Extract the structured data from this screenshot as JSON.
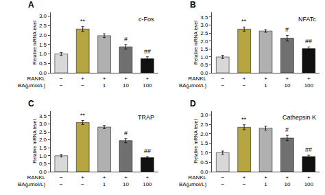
{
  "chart_data": [
    {
      "type": "bar",
      "title": "c-Fos",
      "panel_label": "A",
      "y_label": "Relative mRNA level",
      "category_rows": [
        {
          "label": "RANKL",
          "values": [
            "−",
            "+",
            "+",
            "+",
            "+"
          ]
        },
        {
          "label": "BA(μmol/L)",
          "values": [
            "−",
            "−",
            "1",
            "10",
            "100"
          ]
        }
      ],
      "values": [
        1.0,
        2.32,
        1.97,
        1.38,
        0.75
      ],
      "errors": [
        0.08,
        0.13,
        0.1,
        0.12,
        0.1
      ],
      "annotations": [
        null,
        "**",
        null,
        "#",
        "##"
      ],
      "colors": [
        "#d8d8d8",
        "#b5a642",
        "#b0b0b0",
        "#707070",
        "#111111"
      ],
      "ylim": [
        0,
        3.2
      ],
      "yticks": [
        {
          "value": 0,
          "label": "0.0"
        },
        0.5,
        {
          "value": 1.0,
          "label": "1.0"
        },
        1.5,
        {
          "value": 2.0,
          "label": "2.0"
        },
        2.5,
        {
          "value": 3.0,
          "label": "3.0"
        }
      ],
      "grid": false
    },
    {
      "type": "bar",
      "title": "NFATc",
      "panel_label": "B",
      "y_label": "Relative mRNA level",
      "category_rows": [
        {
          "label": "RANKL",
          "values": [
            "−",
            "+",
            "+",
            "+",
            "+"
          ]
        },
        {
          "label": "BA(μmol/L)",
          "values": [
            "−",
            "−",
            "1",
            "10",
            "100"
          ]
        }
      ],
      "values": [
        1.0,
        2.75,
        2.63,
        2.18,
        1.53
      ],
      "errors": [
        0.1,
        0.13,
        0.08,
        0.18,
        0.1
      ],
      "annotations": [
        null,
        "**",
        null,
        "#",
        "##"
      ],
      "colors": [
        "#d8d8d8",
        "#b5a642",
        "#b0b0b0",
        "#707070",
        "#111111"
      ],
      "ylim": [
        0,
        3.8
      ],
      "yticks": [
        {
          "value": 0,
          "label": "0.0"
        },
        0.5,
        {
          "value": 1.0,
          "label": "1.0"
        },
        1.5,
        {
          "value": 2.0,
          "label": "2.0"
        },
        2.5,
        {
          "value": 3.0,
          "label": "3.0"
        },
        3.5
      ],
      "grid": false
    },
    {
      "type": "bar",
      "title": "TRAP",
      "panel_label": "C",
      "y_label": "Relative mRNA level",
      "category_rows": [
        {
          "label": "RANKL",
          "values": [
            "−",
            "+",
            "+",
            "+",
            "+"
          ]
        },
        {
          "label": "BA(μmol/L)",
          "values": [
            "−",
            "−",
            "1",
            "10",
            "100"
          ]
        }
      ],
      "values": [
        1.0,
        3.08,
        2.8,
        1.95,
        0.88
      ],
      "errors": [
        0.08,
        0.13,
        0.1,
        0.13,
        0.07
      ],
      "annotations": [
        null,
        "**",
        null,
        "#",
        "##"
      ],
      "colors": [
        "#d8d8d8",
        "#b5a642",
        "#b0b0b0",
        "#707070",
        "#111111"
      ],
      "ylim": [
        0,
        3.8
      ],
      "yticks": [
        {
          "value": 0,
          "label": "0.0"
        },
        0.5,
        {
          "value": 1.0,
          "label": "1.0"
        },
        1.5,
        {
          "value": 2.0,
          "label": "2.0"
        },
        2.5,
        {
          "value": 3.0,
          "label": "3.0"
        },
        3.5
      ],
      "grid": false
    },
    {
      "type": "bar",
      "title": "Cathepsin K",
      "panel_label": "D",
      "y_label": "Relative mRNA level",
      "category_rows": [
        {
          "label": "RANKL",
          "values": [
            "−",
            "+",
            "+",
            "+",
            "+"
          ]
        },
        {
          "label": "BA(μmol/L)",
          "values": [
            "−",
            "−",
            "1",
            "10",
            "100"
          ]
        }
      ],
      "values": [
        1.0,
        2.35,
        2.3,
        1.78,
        0.8
      ],
      "errors": [
        0.09,
        0.13,
        0.1,
        0.14,
        0.07
      ],
      "annotations": [
        null,
        "**",
        null,
        "#",
        "##"
      ],
      "colors": [
        "#d8d8d8",
        "#b5a642",
        "#b0b0b0",
        "#707070",
        "#111111"
      ],
      "ylim": [
        0,
        3.2
      ],
      "yticks": [
        {
          "value": 0,
          "label": "0.0"
        },
        0.5,
        {
          "value": 1.0,
          "label": "1.0"
        },
        1.5,
        {
          "value": 2.0,
          "label": "2.0"
        },
        2.5,
        {
          "value": 3.0,
          "label": "3.0"
        }
      ],
      "grid": false
    }
  ]
}
